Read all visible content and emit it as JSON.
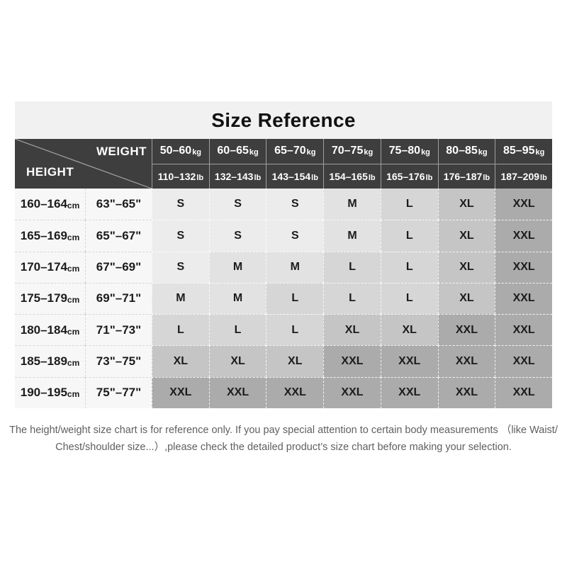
{
  "chart_data": {
    "type": "table",
    "title": "Size Reference",
    "corner": {
      "weight_label": "WEIGHT",
      "height_label": "HEIGHT"
    },
    "units": {
      "kg": "kg",
      "lb": "lb",
      "cm": "cm"
    },
    "weight_columns": [
      {
        "kg": "50–60",
        "lb": "110–132"
      },
      {
        "kg": "60–65",
        "lb": "132–143"
      },
      {
        "kg": "65–70",
        "lb": "143–154"
      },
      {
        "kg": "70–75",
        "lb": "154–165"
      },
      {
        "kg": "75–80",
        "lb": "165–176"
      },
      {
        "kg": "80–85",
        "lb": "176–187"
      },
      {
        "kg": "85–95",
        "lb": "187–209"
      }
    ],
    "rows": [
      {
        "height_cm": "160–164",
        "height_in": "63\"–65\"",
        "sizes": [
          "S",
          "S",
          "S",
          "M",
          "L",
          "XL",
          "XXL"
        ]
      },
      {
        "height_cm": "165–169",
        "height_in": "65\"–67\"",
        "sizes": [
          "S",
          "S",
          "S",
          "M",
          "L",
          "XL",
          "XXL"
        ]
      },
      {
        "height_cm": "170–174",
        "height_in": "67\"–69\"",
        "sizes": [
          "S",
          "M",
          "M",
          "L",
          "L",
          "XL",
          "XXL"
        ]
      },
      {
        "height_cm": "175–179",
        "height_in": "69\"–71\"",
        "sizes": [
          "M",
          "M",
          "L",
          "L",
          "L",
          "XL",
          "XXL"
        ]
      },
      {
        "height_cm": "180–184",
        "height_in": "71\"–73\"",
        "sizes": [
          "L",
          "L",
          "L",
          "XL",
          "XL",
          "XXL",
          "XXL"
        ]
      },
      {
        "height_cm": "185–189",
        "height_in": "73\"–75\"",
        "sizes": [
          "XL",
          "XL",
          "XL",
          "XXL",
          "XXL",
          "XXL",
          "XXL"
        ]
      },
      {
        "height_cm": "190–195",
        "height_in": "75\"–77\"",
        "sizes": [
          "XXL",
          "XXL",
          "XXL",
          "XXL",
          "XXL",
          "XXL",
          "XXL"
        ]
      }
    ],
    "footer": {
      "line1": "The height/weight size chart is for reference only. If you pay special attention to certain body measurements （like Waist/",
      "line2": "Chest/shoulder size...）,please check the detailed product’s size chart before making your selection."
    }
  },
  "colors": {
    "title_bg": "#f1f1f1",
    "header_bg": "#3e3e3e",
    "header_text": "#ffffff",
    "height_cell_bg": "#f7f7f7",
    "footer_text": "#5f5f5f",
    "diagonal_line": "#a0a0a0",
    "size_shades": {
      "S": "#ececec",
      "M": "#e2e2e2",
      "L": "#d6d6d6",
      "XL": "#c5c5c5",
      "XXL": "#ababab"
    }
  }
}
